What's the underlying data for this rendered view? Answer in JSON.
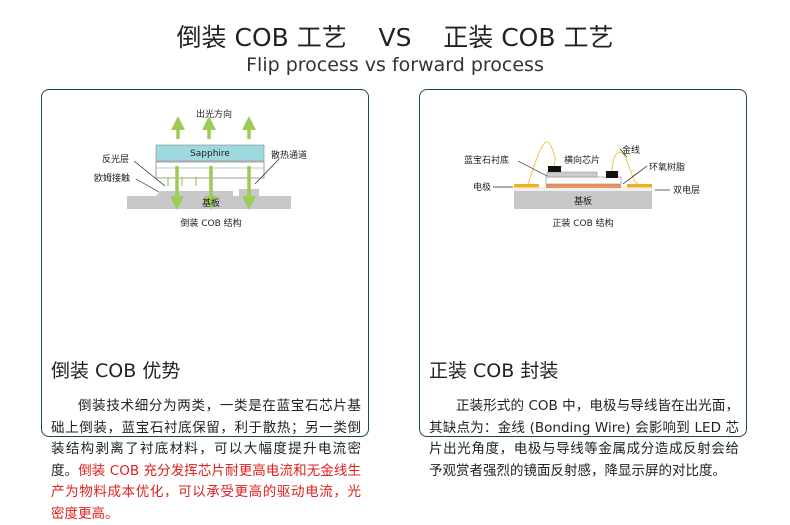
{
  "header": {
    "title": "倒装 COB 工艺    VS    正装 COB 工艺",
    "subtitle": "Flip process vs forward process"
  },
  "colors": {
    "border": "#1d4b3c",
    "accent_red": "#e0201e",
    "sapphire": "#9fd9e0",
    "arrow": "#9ccc55",
    "substrate": "#c8c8c8",
    "electrode": "#f0b020",
    "epoxy": "#e8935a"
  },
  "left": {
    "diagram": {
      "light_dir": "出光方向",
      "sapphire": "Sapphire",
      "reflect": "反光层",
      "ohmic": "欧姆接触",
      "heat": "散热通道",
      "substrate": "基板",
      "caption": "倒装 COB 结构"
    },
    "heading": "倒装 COB 优势",
    "text": "倒装技术细分为两类，一类是在蓝宝石芯片基础上倒装，蓝宝石衬底保留，利于散热；另一类倒装结构剥离了衬底材料，可以大幅度提升电流密度。",
    "text_red": "倒装 COB 充分发挥芯片耐更高电流和无金线生产为物料成本优化，可以承受更高的驱动电流，光密度更高。"
  },
  "right": {
    "diagram": {
      "sapphire_sub": "蓝宝石衬底",
      "chip": "横向芯片",
      "wire": "金线",
      "epoxy": "环氧树脂",
      "electrode": "电极",
      "double": "双电层",
      "substrate": "基板",
      "caption": "正装 COB 结构"
    },
    "heading": "正装 COB 封装",
    "text": "正装形式的 COB 中，电极与导线皆在出光面，其缺点为：金线 (Bonding Wire) 会影响到 LED 芯片出光角度，电极与导线等金属成分造成反射会给予观赏者强烈的镜面反射感，降显示屏的对比度。"
  }
}
